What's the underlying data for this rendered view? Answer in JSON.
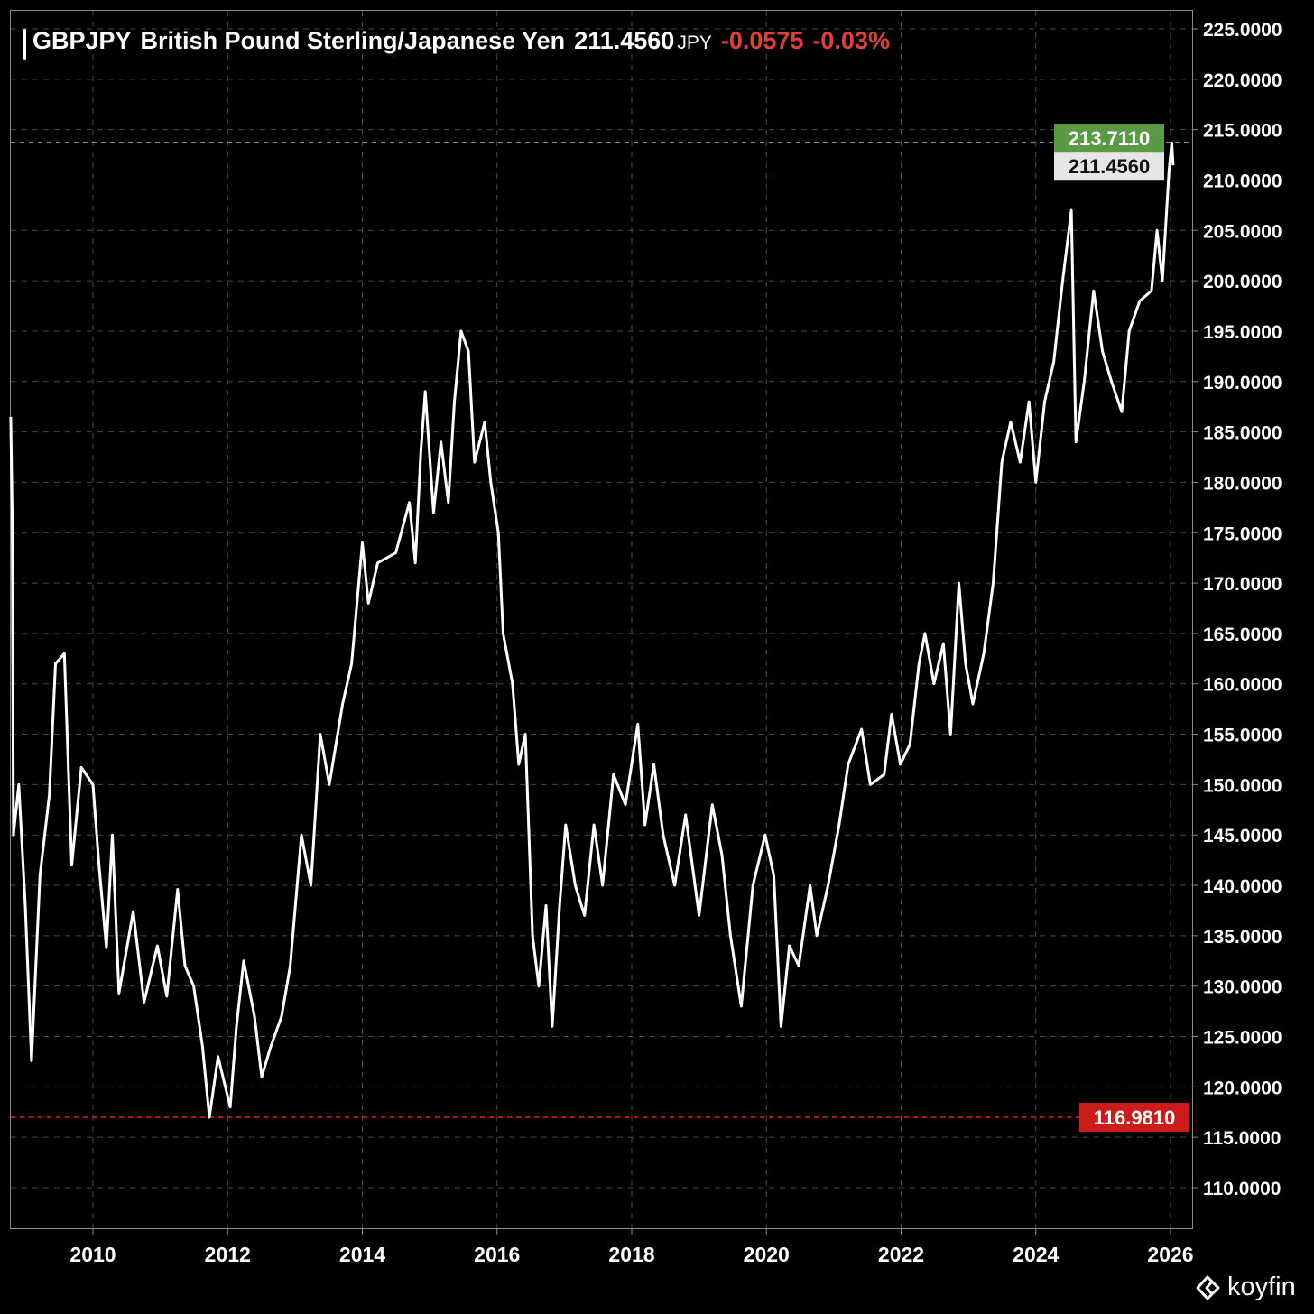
{
  "header": {
    "ticker": "GBPJPY",
    "name": "British Pound Sterling/Japanese Yen",
    "price": "211.4560",
    "currency": "JPY",
    "change": "-0.0575",
    "change_pct": "-0.03%"
  },
  "colors": {
    "background": "#000000",
    "line": "#ffffff",
    "grid": "#4a4a4a",
    "high": "#5b9a44",
    "low": "#cc1b1b",
    "last": "#e6e6e6",
    "negative": "#e0403a"
  },
  "brand": {
    "logo_text": "koyfin",
    "icon": "koyfin-chevron-logo-icon"
  },
  "chart_data": {
    "type": "line",
    "title": "GBPJPY British Pound Sterling/Japanese Yen",
    "xlabel": "",
    "ylabel": "",
    "x_ticks": [
      "2010",
      "2012",
      "2014",
      "2016",
      "2018",
      "2020",
      "2022",
      "2024",
      "2026"
    ],
    "y_ticks": [
      "225.0000",
      "220.0000",
      "215.0000",
      "210.0000",
      "205.0000",
      "200.0000",
      "195.0000",
      "190.0000",
      "185.0000",
      "180.0000",
      "175.0000",
      "170.0000",
      "165.0000",
      "160.0000",
      "155.0000",
      "150.0000",
      "145.0000",
      "140.0000",
      "135.0000",
      "130.0000",
      "125.0000",
      "120.0000",
      "115.0000",
      "110.0000"
    ],
    "ylim": [
      106,
      226.8
    ],
    "grid": true,
    "high_line": {
      "value": 213.711,
      "label": "213.7110"
    },
    "low_line": {
      "value": 116.981,
      "label": "116.9810"
    },
    "last_label": {
      "value": 211.456,
      "label": "211.4560"
    },
    "series": [
      {
        "points": [
          [
            "2008-10-12",
            186.5
          ],
          [
            "2008-10-20",
            177
          ],
          [
            "2008-10-27",
            145
          ],
          [
            "2008-11-25",
            150
          ],
          [
            "2008-12-30",
            138
          ],
          [
            "2009-02-02",
            122.6
          ],
          [
            "2009-03-20",
            141
          ],
          [
            "2009-05-10",
            149
          ],
          [
            "2009-06-12",
            162
          ],
          [
            "2009-07-30",
            163
          ],
          [
            "2009-09-08",
            142
          ],
          [
            "2009-10-30",
            151.7
          ],
          [
            "2010-01-01",
            150
          ],
          [
            "2010-02-03",
            142
          ],
          [
            "2010-03-15",
            133.8
          ],
          [
            "2010-04-16",
            145
          ],
          [
            "2010-05-22",
            129.3
          ],
          [
            "2010-08-07",
            137.4
          ],
          [
            "2010-10-05",
            128.4
          ],
          [
            "2010-12-16",
            134
          ],
          [
            "2011-02-05",
            129
          ],
          [
            "2011-04-05",
            139.6
          ],
          [
            "2011-05-15",
            132
          ],
          [
            "2011-07-01",
            130
          ],
          [
            "2011-08-18",
            124
          ],
          [
            "2011-09-24",
            116.98
          ],
          [
            "2011-11-10",
            123
          ],
          [
            "2012-01-15",
            118
          ],
          [
            "2012-02-18",
            126
          ],
          [
            "2012-03-28",
            132.5
          ],
          [
            "2012-05-26",
            127
          ],
          [
            "2012-07-04",
            121
          ],
          [
            "2012-08-22",
            124
          ],
          [
            "2012-10-20",
            127
          ],
          [
            "2012-12-06",
            132
          ],
          [
            "2013-02-05",
            145
          ],
          [
            "2013-03-28",
            140
          ],
          [
            "2013-05-18",
            155
          ],
          [
            "2013-07-06",
            150
          ],
          [
            "2013-09-16",
            158
          ],
          [
            "2013-11-04",
            162
          ],
          [
            "2014-01-01",
            174
          ],
          [
            "2014-02-03",
            168
          ],
          [
            "2014-03-25",
            172
          ],
          [
            "2014-07-01",
            173
          ],
          [
            "2014-09-13",
            178
          ],
          [
            "2014-10-15",
            172
          ],
          [
            "2014-11-14",
            183
          ],
          [
            "2014-12-08",
            189
          ],
          [
            "2015-01-22",
            177
          ],
          [
            "2015-03-03",
            184
          ],
          [
            "2015-04-12",
            178
          ],
          [
            "2015-05-15",
            188
          ],
          [
            "2015-06-20",
            195
          ],
          [
            "2015-07-30",
            193
          ],
          [
            "2015-09-01",
            182
          ],
          [
            "2015-10-26",
            186
          ],
          [
            "2015-11-28",
            180
          ],
          [
            "2016-01-08",
            175
          ],
          [
            "2016-02-03",
            165
          ],
          [
            "2016-03-25",
            160
          ],
          [
            "2016-04-28",
            152
          ],
          [
            "2016-06-03",
            155
          ],
          [
            "2016-07-12",
            135
          ],
          [
            "2016-08-15",
            130
          ],
          [
            "2016-09-23",
            138
          ],
          [
            "2016-10-27",
            126
          ],
          [
            "2016-12-06",
            138
          ],
          [
            "2017-01-08",
            146
          ],
          [
            "2017-03-01",
            140
          ],
          [
            "2017-04-20",
            137
          ],
          [
            "2017-06-10",
            146
          ],
          [
            "2017-07-27",
            140
          ],
          [
            "2017-09-24",
            151
          ],
          [
            "2017-11-28",
            148
          ],
          [
            "2018-02-03",
            156
          ],
          [
            "2018-03-14",
            146
          ],
          [
            "2018-05-01",
            152
          ],
          [
            "2018-06-20",
            145
          ],
          [
            "2018-08-22",
            140
          ],
          [
            "2018-10-20",
            147
          ],
          [
            "2019-01-01",
            137
          ],
          [
            "2019-03-14",
            148
          ],
          [
            "2019-05-05",
            143
          ],
          [
            "2019-06-20",
            135
          ],
          [
            "2019-08-18",
            128
          ],
          [
            "2019-10-20",
            140
          ],
          [
            "2019-12-25",
            145
          ],
          [
            "2020-02-10",
            141
          ],
          [
            "2020-03-20",
            126
          ],
          [
            "2020-05-05",
            134
          ],
          [
            "2020-06-25",
            132
          ],
          [
            "2020-08-25",
            140
          ],
          [
            "2020-10-01",
            135
          ],
          [
            "2020-12-01",
            140
          ],
          [
            "2021-01-30",
            146
          ],
          [
            "2021-03-20",
            152
          ],
          [
            "2021-06-01",
            155.5
          ],
          [
            "2021-07-18",
            150
          ],
          [
            "2021-10-01",
            151
          ],
          [
            "2021-11-10",
            157
          ],
          [
            "2021-12-28",
            152
          ],
          [
            "2022-02-18",
            154
          ],
          [
            "2022-04-08",
            162
          ],
          [
            "2022-05-10",
            165
          ],
          [
            "2022-06-28",
            160
          ],
          [
            "2022-08-18",
            164
          ],
          [
            "2022-09-26",
            155
          ],
          [
            "2022-11-10",
            170
          ],
          [
            "2022-12-16",
            162
          ],
          [
            "2023-01-25",
            158
          ],
          [
            "2023-03-25",
            163
          ],
          [
            "2023-05-15",
            170
          ],
          [
            "2023-07-01",
            182
          ],
          [
            "2023-08-18",
            186
          ],
          [
            "2023-10-08",
            182
          ],
          [
            "2023-11-25",
            188
          ],
          [
            "2024-01-01",
            180
          ],
          [
            "2024-02-18",
            188
          ],
          [
            "2024-04-08",
            192
          ],
          [
            "2024-05-26",
            200
          ],
          [
            "2024-07-12",
            207
          ],
          [
            "2024-08-06",
            184
          ],
          [
            "2024-09-20",
            190
          ],
          [
            "2024-11-10",
            199
          ],
          [
            "2024-12-28",
            193
          ],
          [
            "2025-02-15",
            190
          ],
          [
            "2025-04-12",
            187
          ],
          [
            "2025-05-22",
            195
          ],
          [
            "2025-07-18",
            198
          ],
          [
            "2025-09-20",
            199
          ],
          [
            "2025-10-20",
            205
          ],
          [
            "2025-11-18",
            200
          ],
          [
            "2025-12-24",
            211
          ],
          [
            "2026-01-08",
            213.7
          ],
          [
            "2026-01-15",
            211.456
          ]
        ]
      }
    ]
  }
}
